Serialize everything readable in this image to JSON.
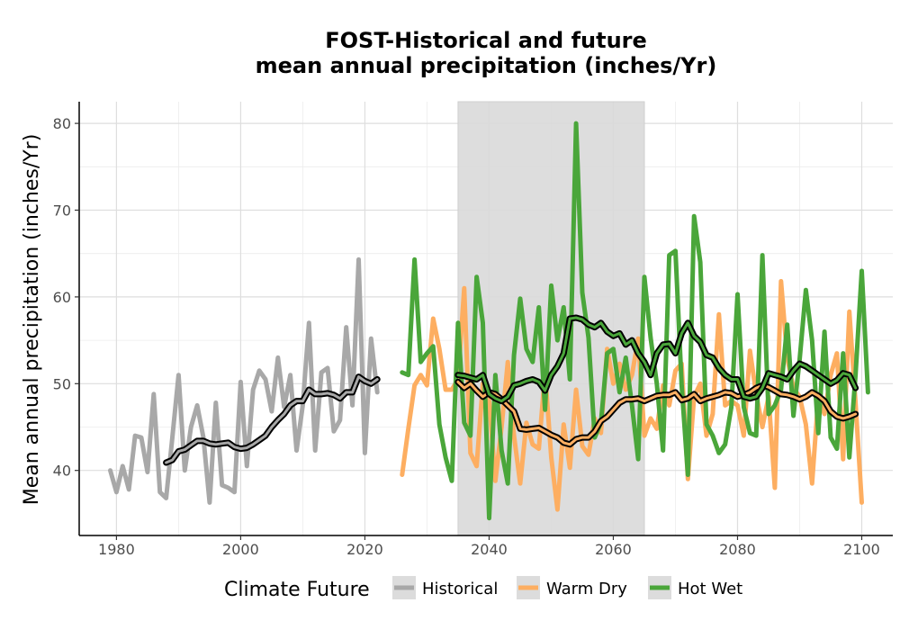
{
  "chart_data": {
    "type": "line",
    "title_line1": "FOST-Historical and future",
    "title_line2": "mean annual precipitation (inches/Yr)",
    "xlabel": "",
    "ylabel": "Mean annual precipitation (inches/Yr)",
    "xlim": [
      1974,
      2105
    ],
    "ylim": [
      32.5,
      82.5
    ],
    "x_ticks": [
      1980,
      2000,
      2020,
      2040,
      2060,
      2080,
      2100
    ],
    "y_ticks": [
      40,
      50,
      60,
      70,
      80
    ],
    "grid": true,
    "shaded_period": [
      2035,
      2065
    ],
    "legend": {
      "title": "Climate Future",
      "position": "bottom",
      "items": [
        {
          "label": "Historical",
          "color": "#a8a8a8"
        },
        {
          "label": "Warm Dry",
          "color": "#fdae61"
        },
        {
          "label": "Hot Wet",
          "color": "#4aa63a"
        }
      ]
    },
    "series": [
      {
        "name": "Historical",
        "color": "#a8a8a8",
        "x_start": 1979,
        "values": [
          40.0,
          37.5,
          40.5,
          37.8,
          44.0,
          43.8,
          39.8,
          48.8,
          37.5,
          36.8,
          43.8,
          51.0,
          40.0,
          45.0,
          47.5,
          43.8,
          36.3,
          47.8,
          38.3,
          38.0,
          37.5,
          50.2,
          40.5,
          49.3,
          51.5,
          50.5,
          46.8,
          53.0,
          47.3,
          51.0,
          42.3,
          47.5,
          57.0,
          42.3,
          51.3,
          51.8,
          44.5,
          45.8,
          56.5,
          47.5,
          64.3,
          42.0,
          55.2,
          49.0
        ]
      },
      {
        "name": "Warm Dry",
        "color": "#fdae61",
        "x_start": 2026,
        "values": [
          39.5,
          44.8,
          49.8,
          51.0,
          49.8,
          57.5,
          54.0,
          49.3,
          49.3,
          50.5,
          61.0,
          42.0,
          40.5,
          50.0,
          48.0,
          38.8,
          45.0,
          52.5,
          44.0,
          38.5,
          45.5,
          43.0,
          42.5,
          51.3,
          41.5,
          35.5,
          45.3,
          40.3,
          49.3,
          42.8,
          41.8,
          46.0,
          44.3,
          54.0,
          50.0,
          52.3,
          49.3,
          51.0,
          55.2,
          44.0,
          46.0,
          44.8,
          49.8,
          47.5,
          51.5,
          52.3,
          39.0,
          48.5,
          50.0,
          44.0,
          46.5,
          58.0,
          47.5,
          48.0,
          47.5,
          44.0,
          53.8,
          48.8,
          45.0,
          48.5,
          38.0,
          61.8,
          53.0,
          49.5,
          48.5,
          45.3,
          38.5,
          48.5,
          46.5,
          51.0,
          53.5,
          41.3,
          58.3,
          47.8,
          36.3
        ]
      },
      {
        "name": "Hot Wet",
        "color": "#4aa63a",
        "x_start": 2026,
        "values": [
          51.3,
          51.0,
          64.3,
          52.5,
          53.5,
          54.3,
          45.3,
          41.5,
          38.8,
          57.0,
          45.5,
          44.0,
          62.3,
          57.0,
          34.5,
          51.0,
          42.3,
          38.5,
          53.3,
          59.8,
          54.0,
          52.5,
          58.8,
          47.0,
          61.3,
          55.0,
          58.8,
          50.5,
          80.0,
          60.5,
          55.3,
          43.8,
          45.5,
          53.5,
          54.0,
          49.0,
          53.0,
          47.5,
          41.3,
          62.3,
          55.3,
          50.0,
          42.3,
          64.8,
          65.3,
          49.8,
          39.5,
          69.3,
          64.0,
          45.3,
          44.0,
          42.0,
          43.0,
          47.3,
          60.3,
          47.3,
          44.3,
          44.0,
          64.8,
          46.5,
          47.5,
          49.3,
          56.8,
          46.3,
          52.8,
          60.8,
          55.0,
          44.3,
          56.0,
          43.8,
          42.5,
          53.5,
          41.5,
          51.0,
          63.0,
          49.0
        ]
      },
      {
        "name": "Historical smooth",
        "color": "#a8a8a8",
        "x_start": 1988,
        "values": [
          40.9,
          41.2,
          42.2,
          42.4,
          42.9,
          43.4,
          43.4,
          43.1,
          43.0,
          43.1,
          43.2,
          42.7,
          42.5,
          42.6,
          43.0,
          43.5,
          44.0,
          45.0,
          45.8,
          46.5,
          47.5,
          48.0,
          48.0,
          49.3,
          48.8,
          48.8,
          48.9,
          48.7,
          48.3,
          49.0,
          49.0,
          50.8,
          50.3,
          50.0,
          50.5
        ]
      },
      {
        "name": "Warm Dry smooth",
        "color": "#fdae61",
        "x_start": 2035,
        "values": [
          50.2,
          49.5,
          50.0,
          49.2,
          48.5,
          49.0,
          48.8,
          48.2,
          47.5,
          46.8,
          44.8,
          44.7,
          44.8,
          44.9,
          44.5,
          44.1,
          43.8,
          43.2,
          43.0,
          43.6,
          43.8,
          43.8,
          44.5,
          45.7,
          46.2,
          47.0,
          47.8,
          48.2,
          48.2,
          48.3,
          48.0,
          48.3,
          48.6,
          48.7,
          48.7,
          49.0,
          48.1,
          48.3,
          48.8,
          48.0,
          48.3,
          48.5,
          48.7,
          49.0,
          48.9,
          48.5,
          48.7,
          49.0,
          49.5,
          49.8,
          49.6,
          49.2,
          48.8,
          48.7,
          48.5,
          48.2,
          48.5,
          49.0,
          48.6,
          48.0,
          46.8,
          46.2,
          46.0,
          46.2,
          46.5
        ]
      },
      {
        "name": "Hot Wet smooth",
        "color": "#4aa63a",
        "x_start": 2035,
        "values": [
          51.0,
          50.9,
          50.7,
          50.5,
          51.0,
          48.8,
          48.3,
          48.0,
          48.5,
          49.8,
          50.0,
          50.3,
          50.5,
          50.2,
          49.2,
          51.0,
          52.0,
          53.5,
          57.5,
          57.6,
          57.4,
          56.8,
          56.5,
          57.0,
          56.0,
          55.5,
          55.8,
          54.5,
          55.0,
          53.5,
          52.5,
          51.0,
          53.5,
          54.5,
          54.6,
          53.5,
          55.8,
          57.0,
          55.5,
          54.8,
          53.3,
          53.0,
          51.8,
          51.0,
          50.5,
          50.5,
          48.5,
          48.3,
          48.5,
          49.5,
          51.2,
          51.0,
          50.8,
          50.5,
          51.5,
          52.3,
          52.0,
          51.5,
          51.0,
          50.5,
          50.0,
          50.4,
          51.2,
          51.0,
          49.5
        ]
      }
    ]
  }
}
